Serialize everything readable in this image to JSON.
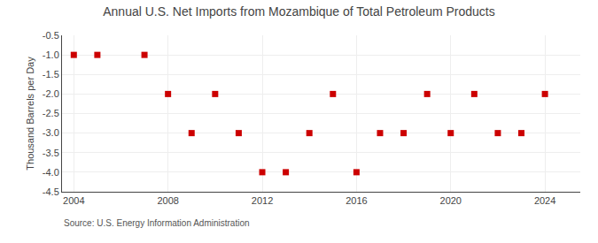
{
  "chart_data": {
    "type": "scatter",
    "title": "Annual U.S. Net Imports from Mozambique of Total Petroleum Products",
    "ylabel": "Thousand Barrels per Day",
    "annotations": [
      "Source: U.S. Energy Information Administration"
    ],
    "x": [
      2004,
      2005,
      2007,
      2008,
      2009,
      2010,
      2011,
      2012,
      2013,
      2014,
      2015,
      2016,
      2017,
      2018,
      2019,
      2020,
      2021,
      2022,
      2023,
      2024
    ],
    "values": [
      -1,
      -1,
      -1,
      -2,
      -3,
      -2,
      -3,
      -4,
      -4,
      -3,
      -2,
      -4,
      -3,
      -3,
      -2,
      -3,
      -2,
      -3,
      -3,
      -2
    ],
    "color": "#cc0000",
    "marker": "square",
    "ylim": [
      -4.5,
      -0.5
    ],
    "yticks": [
      -0.5,
      {
        "value": -1,
        "label": "-1.0"
      },
      -1.5,
      {
        "value": -2,
        "label": "-2.0"
      },
      -2.5,
      {
        "value": -3,
        "label": "-3.0"
      },
      -3.5,
      {
        "value": -4,
        "label": "-4.0"
      },
      -4.5
    ],
    "xlim": [
      2003.5,
      2025.5
    ],
    "xticks": [
      2004,
      2008,
      2012,
      2016,
      2020,
      2024
    ],
    "grid": true
  }
}
